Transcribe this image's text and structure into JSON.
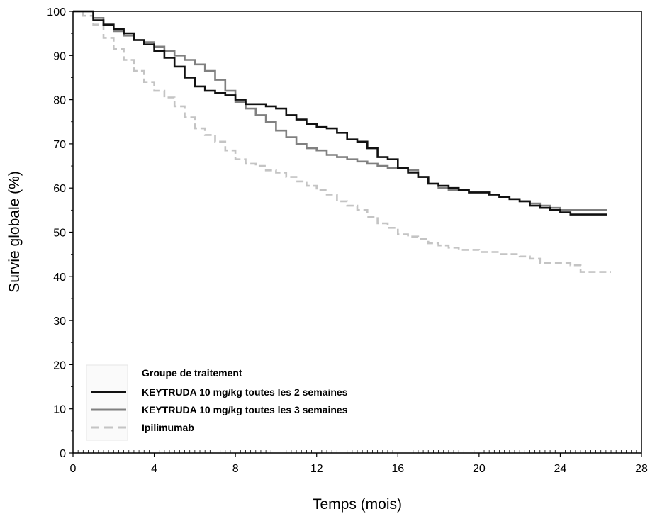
{
  "chart_data": {
    "type": "line",
    "title": "",
    "xlabel": "Temps (mois)",
    "ylabel": "Survie globale (%)",
    "xlim": [
      0,
      28
    ],
    "ylim": [
      0,
      100
    ],
    "xticks": [
      0,
      4,
      8,
      12,
      16,
      20,
      24,
      28
    ],
    "yticks": [
      0,
      10,
      20,
      30,
      40,
      50,
      60,
      70,
      80,
      90,
      100
    ],
    "grid": false,
    "legend": {
      "title": "Groupe de traitement",
      "placement": "bottom-left"
    },
    "series": [
      {
        "name": "KEYTRUDA 10  mg/kg toutes les 2  semaines",
        "color": "#111111",
        "style": "solid",
        "x": [
          0,
          1,
          1.5,
          2,
          2.5,
          3,
          3.5,
          4,
          4.5,
          5,
          5.5,
          6,
          6.5,
          7,
          7.5,
          8,
          8.5,
          9,
          9.5,
          10,
          10.5,
          11,
          11.5,
          12,
          12.5,
          13,
          13.5,
          14,
          14.5,
          15,
          15.5,
          16,
          16.5,
          17,
          17.5,
          18,
          18.5,
          19,
          19.5,
          20,
          20.5,
          21,
          21.5,
          22,
          22.5,
          23,
          23.5,
          24,
          24.5,
          25,
          25.5,
          26,
          26.3
        ],
        "y": [
          100,
          98,
          97,
          96,
          95,
          93.5,
          92.5,
          91,
          89.5,
          87.5,
          85,
          83,
          82,
          81.5,
          81,
          80,
          79,
          79,
          78.5,
          78,
          76.5,
          75.5,
          74.5,
          73.8,
          73.5,
          72.5,
          71,
          70.5,
          69,
          67,
          66.5,
          64.5,
          63.5,
          62.5,
          61,
          60.5,
          60,
          59.5,
          59,
          59,
          58.5,
          58,
          57.5,
          57,
          56,
          55.5,
          55,
          54.5,
          54,
          54,
          54,
          54,
          54
        ]
      },
      {
        "name": "KEYTRUDA 10  mg/kg toutes les 3  semaines",
        "color": "#808080",
        "style": "solid",
        "x": [
          0,
          1,
          1.5,
          2,
          2.5,
          3,
          3.5,
          4,
          4.5,
          5,
          5.5,
          6,
          6.5,
          7,
          7.5,
          8,
          8.5,
          9,
          9.5,
          10,
          10.5,
          11,
          11.5,
          12,
          12.5,
          13,
          13.5,
          14,
          14.5,
          15,
          15.5,
          16,
          16.5,
          17,
          17.5,
          18,
          18.5,
          19,
          19.5,
          20,
          20.5,
          21,
          21.5,
          22,
          22.5,
          23,
          23.5,
          24,
          24.5,
          25,
          25.5,
          26,
          26.3
        ],
        "y": [
          100,
          98.5,
          97,
          95.5,
          94.5,
          93.5,
          93,
          92,
          91,
          90,
          89,
          88,
          86.5,
          84.5,
          82,
          79.5,
          78,
          76.5,
          75,
          73,
          71.5,
          70,
          69,
          68.5,
          67.5,
          67,
          66.5,
          66,
          65.5,
          65,
          64.5,
          64.5,
          64,
          62.5,
          61,
          60,
          59.5,
          59.5,
          59,
          59,
          58.5,
          58,
          57.5,
          57,
          56.5,
          56,
          55.5,
          55,
          55,
          55,
          55,
          55,
          55
        ]
      },
      {
        "name": "Ipilimumab",
        "color": "#c4c4c4",
        "style": "dashed",
        "x": [
          0,
          0.5,
          1,
          1.5,
          2,
          2.5,
          3,
          3.5,
          4,
          4.5,
          5,
          5.5,
          6,
          6.5,
          7,
          7.5,
          8,
          8.5,
          9,
          9.5,
          10,
          10.5,
          11,
          11.5,
          12,
          12.5,
          13,
          13.5,
          14,
          14.5,
          15,
          15.5,
          16,
          16.5,
          17,
          17.5,
          18,
          18.5,
          19,
          19.5,
          20,
          20.5,
          21,
          21.5,
          22,
          22.5,
          23,
          23.5,
          24,
          24.5,
          25,
          25.5,
          26,
          26.5
        ],
        "y": [
          100,
          99,
          97,
          94,
          91.5,
          89,
          86.5,
          84,
          82,
          80.5,
          78.5,
          76,
          73.5,
          72,
          70.5,
          68.5,
          66.5,
          65.5,
          65,
          64,
          63.5,
          62.5,
          61.5,
          60.5,
          59.5,
          58.5,
          57,
          56,
          55,
          53.5,
          52,
          51,
          49.5,
          49,
          48.5,
          47.5,
          47,
          46.5,
          46,
          46,
          45.5,
          45.5,
          45,
          45,
          44.5,
          44,
          43,
          43,
          43,
          42.5,
          41,
          41,
          41,
          41
        ]
      }
    ]
  }
}
